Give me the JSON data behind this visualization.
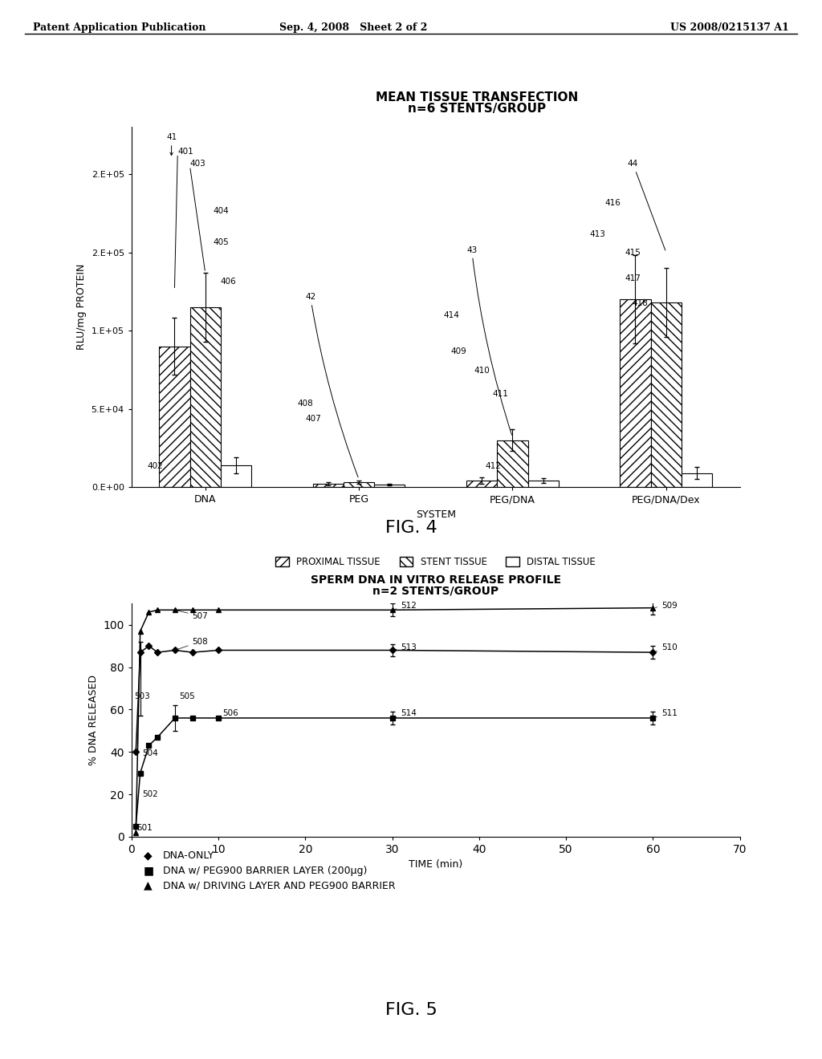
{
  "header_left": "Patent Application Publication",
  "header_mid": "Sep. 4, 2008   Sheet 2 of 2",
  "header_right": "US 2008/0215137 A1",
  "fig4_title_line1": "MEAN TISSUE TRANSFECTION",
  "fig4_title_line2": "n=6 STENTS/GROUP",
  "fig4_xlabel": "SYSTEM",
  "fig4_ylabel": "RLU/mg PROTEIN",
  "fig4_ytick_positions": [
    0,
    50000,
    100000,
    150000,
    200000
  ],
  "fig4_ytick_labels": [
    "0.E+00",
    "5.E+04",
    "1.E+05",
    "2.E+05",
    "2.E+05"
  ],
  "fig4_ylim": [
    0,
    230000
  ],
  "fig4_groups": [
    "DNA",
    "PEG",
    "PEG/DNA",
    "PEG/DNA/Dex"
  ],
  "fig4_proximal": [
    90000,
    2000,
    4000,
    120000
  ],
  "fig4_stent": [
    115000,
    3000,
    30000,
    118000
  ],
  "fig4_distal": [
    14000,
    1500,
    4000,
    9000
  ],
  "fig4_proximal_err": [
    18000,
    1000,
    2000,
    28000
  ],
  "fig4_stent_err": [
    22000,
    1000,
    7000,
    22000
  ],
  "fig4_distal_err": [
    5000,
    500,
    1500,
    4000
  ],
  "fig4_legend_proximal": "PROXIMAL TISSUE",
  "fig4_legend_stent": "STENT TISSUE",
  "fig4_legend_distal": "DISTAL TISSUE",
  "fig5_title_line1": "SPERM DNA IN VITRO RELEASE PROFILE",
  "fig5_title_line2": "n=2 STENTS/GROUP",
  "fig5_xlabel": "TIME (min)",
  "fig5_ylabel": "% DNA RELEASED",
  "fig5_xlim": [
    0,
    70
  ],
  "fig5_ylim": [
    0,
    110
  ],
  "fig5_xticks": [
    0,
    10,
    20,
    30,
    40,
    50,
    60,
    70
  ],
  "fig5_yticks": [
    0,
    20,
    40,
    60,
    80,
    100
  ],
  "dna_only_x": [
    0.5,
    1,
    2,
    3,
    5,
    7,
    10,
    30,
    60
  ],
  "dna_only_y": [
    40,
    87,
    90,
    87,
    88,
    87,
    88,
    88,
    87
  ],
  "peg_x": [
    0.5,
    1,
    2,
    3,
    5,
    7,
    10,
    30,
    60
  ],
  "peg_y": [
    5,
    30,
    43,
    47,
    56,
    56,
    56,
    56,
    56
  ],
  "driving_x": [
    0.5,
    1,
    2,
    3,
    5,
    7,
    10,
    30,
    60
  ],
  "driving_y": [
    2,
    97,
    106,
    107,
    107,
    107,
    107,
    107,
    108
  ],
  "legend5_dna": "DNA-ONLY",
  "legend5_peg": "DNA w/ PEG900 BARRIER LAYER (200μg)",
  "legend5_driving": "DNA w/ DRIVING LAYER AND PEG900 BARRIER",
  "fig4_caption": "FIG. 4",
  "fig5_caption": "FIG. 5",
  "bg_color": "#ffffff"
}
